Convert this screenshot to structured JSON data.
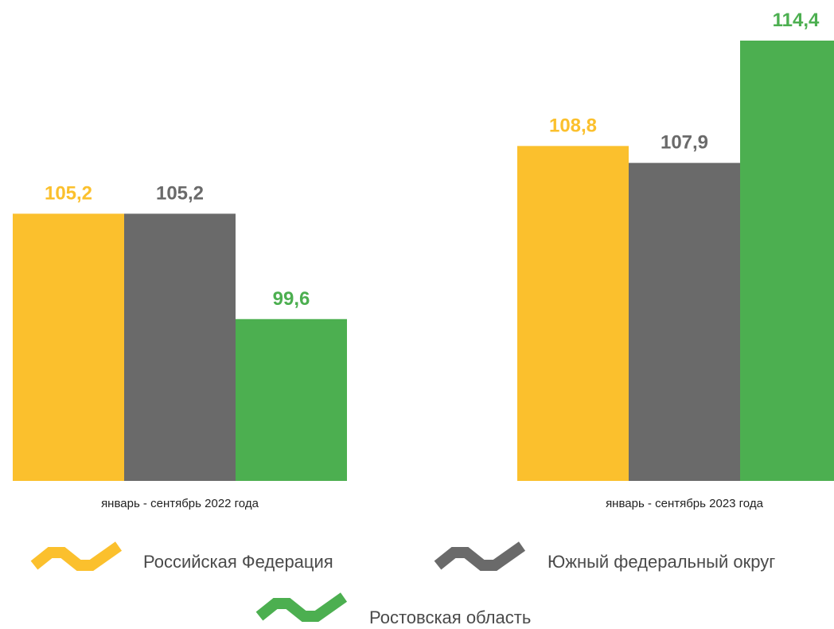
{
  "chart_data": {
    "type": "bar",
    "categories": [
      "январь - сентябрь 2022 года",
      "январь - сентябрь 2023 года"
    ],
    "series": [
      {
        "name": "Российская Федерация",
        "color": "#FBC02D",
        "values": [
          105.2,
          108.8
        ],
        "labels": [
          "105,2",
          "108,8"
        ]
      },
      {
        "name": "Южный федеральный округ",
        "color": "#6A6A6A",
        "values": [
          105.2,
          107.9
        ],
        "labels": [
          "105,2",
          "107,9"
        ]
      },
      {
        "name": "Ростовская область",
        "color": "#4CAF50",
        "values": [
          99.6,
          114.4
        ],
        "labels": [
          "99,6",
          "114,4"
        ]
      }
    ],
    "ylim": [
      91.0,
      114.4
    ],
    "grid": false,
    "legend_position": "bottom",
    "legend_marker": "chevron-icon"
  }
}
